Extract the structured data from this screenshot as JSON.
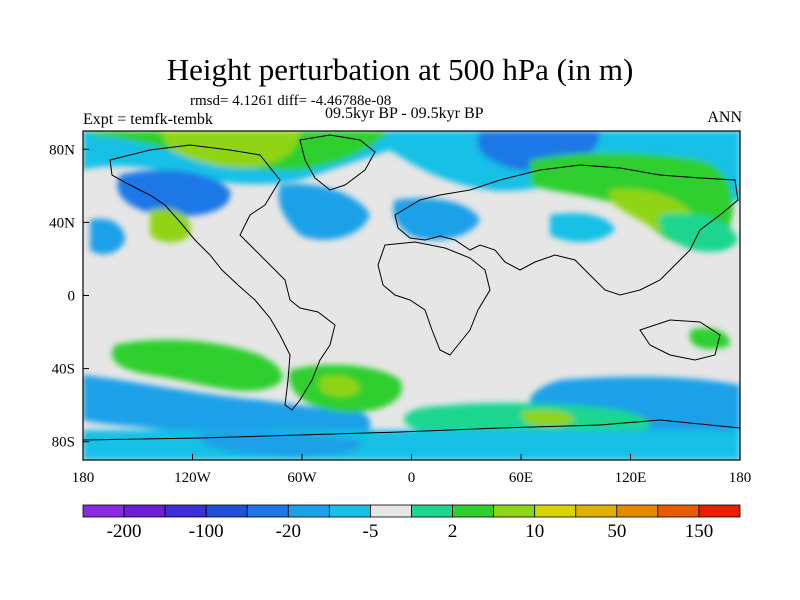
{
  "title": "Height perturbation at 500 hPa (in m)",
  "stats": "rmsd= 4.1261 diff= -4.46788e-08",
  "experiment": "Expt = temfk-tembk",
  "period": "09.5kyr BP - 09.5kyr BP",
  "season": "ANN",
  "map": {
    "projection": "cylindrical equidistant",
    "lon_range": [
      -180,
      180
    ],
    "lat_range": [
      -90,
      90
    ],
    "lon_ticks": [
      {
        "value": -180,
        "label": "180"
      },
      {
        "value": -120,
        "label": "120W"
      },
      {
        "value": -60,
        "label": "60W"
      },
      {
        "value": 0,
        "label": "0"
      },
      {
        "value": 60,
        "label": "60E"
      },
      {
        "value": 120,
        "label": "120E"
      },
      {
        "value": 180,
        "label": "180"
      }
    ],
    "lat_ticks": [
      {
        "value": 80,
        "label": "80N"
      },
      {
        "value": 40,
        "label": "40N"
      },
      {
        "value": 0,
        "label": "0"
      },
      {
        "value": -40,
        "label": "40S"
      },
      {
        "value": -80,
        "label": "80S"
      }
    ]
  },
  "colorbar": {
    "colors": [
      "#8a2be2",
      "#6a1fd6",
      "#3c2fd8",
      "#1e50d8",
      "#1f78e6",
      "#1ea0e8",
      "#19c0e6",
      "#e6e6e6",
      "#1ed690",
      "#2fcf2f",
      "#90d418",
      "#d8d400",
      "#e0b000",
      "#e48a00",
      "#e85a00",
      "#e81e00"
    ],
    "labels": [
      {
        "boundary": 1,
        "text": "-200"
      },
      {
        "boundary": 3,
        "text": "-100"
      },
      {
        "boundary": 5,
        "text": "-20"
      },
      {
        "boundary": 7,
        "text": "-5"
      },
      {
        "boundary": 9,
        "text": "2"
      },
      {
        "boundary": 11,
        "text": "10"
      },
      {
        "boundary": 13,
        "text": "50"
      },
      {
        "boundary": 15,
        "text": "150"
      }
    ]
  }
}
